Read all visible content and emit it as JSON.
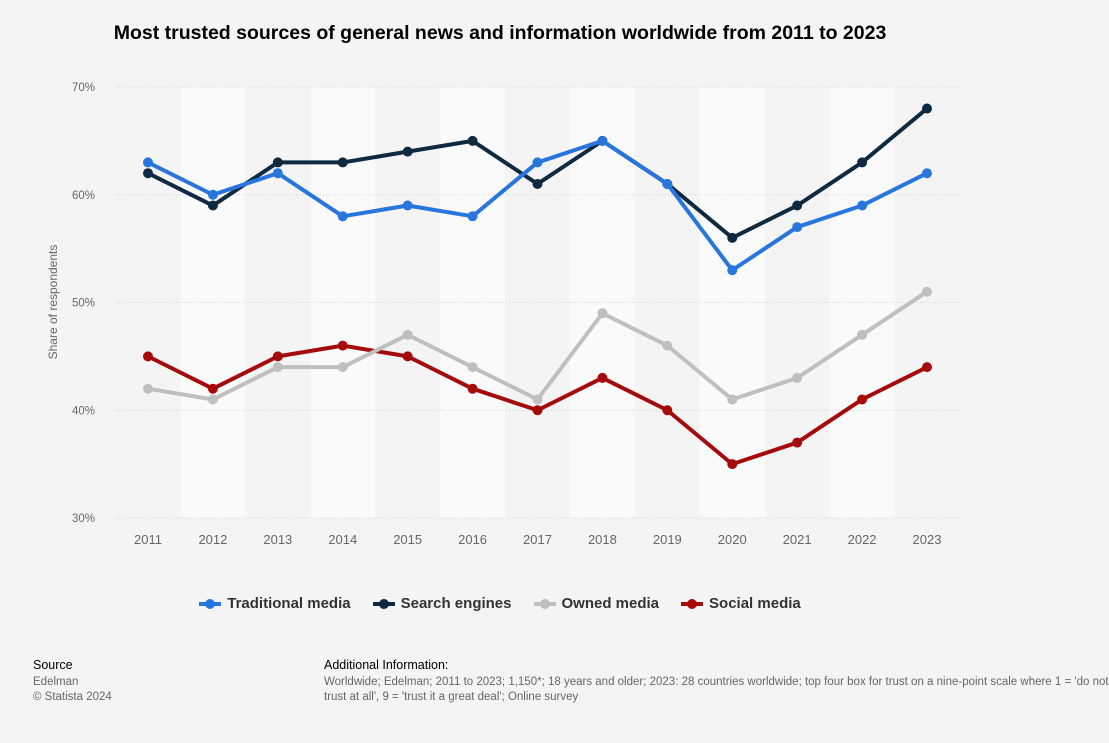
{
  "chart_data": {
    "type": "line",
    "title": "Most trusted sources of general news and information worldwide from 2011 to 2023",
    "xlabel": "",
    "ylabel": "Share of respondents",
    "x": [
      "2011",
      "2012",
      "2013",
      "2014",
      "2015",
      "2016",
      "2017",
      "2018",
      "2019",
      "2020",
      "2021",
      "2022",
      "2023"
    ],
    "ylim": [
      30,
      70
    ],
    "yticks": [
      "30%",
      "40%",
      "50%",
      "60%",
      "70%"
    ],
    "grid": true,
    "legend": "bottom",
    "series": [
      {
        "name": "Traditional media",
        "color": "#2876dd",
        "values": [
          63,
          60,
          62,
          58,
          59,
          58,
          63,
          65,
          61,
          53,
          57,
          59,
          62
        ]
      },
      {
        "name": "Search engines",
        "color": "#0f2a40",
        "values": [
          62,
          59,
          63,
          63,
          64,
          65,
          61,
          65,
          61,
          56,
          59,
          63,
          68
        ]
      },
      {
        "name": "Owned media",
        "color": "#bfbfbf",
        "values": [
          42,
          41,
          44,
          44,
          47,
          44,
          41,
          49,
          46,
          41,
          43,
          47,
          51
        ]
      },
      {
        "name": "Social media",
        "color": "#a50b0b",
        "values": [
          45,
          42,
          45,
          46,
          45,
          42,
          40,
          43,
          40,
          35,
          37,
          41,
          44
        ]
      }
    ]
  },
  "footer": {
    "source_label": "Source",
    "source": "Edelman",
    "copyright": "© Statista 2024",
    "info_label": "Additional Information:",
    "info_line1": "Worldwide; Edelman; 2011 to 2023; 1,150*; 18 years and older; 2023: 28 countries worldwide; top four box for trust on a nine-point scale where 1 = 'do not",
    "info_line2": "trust at all', 9 = 'trust it a great deal'; Online survey"
  }
}
